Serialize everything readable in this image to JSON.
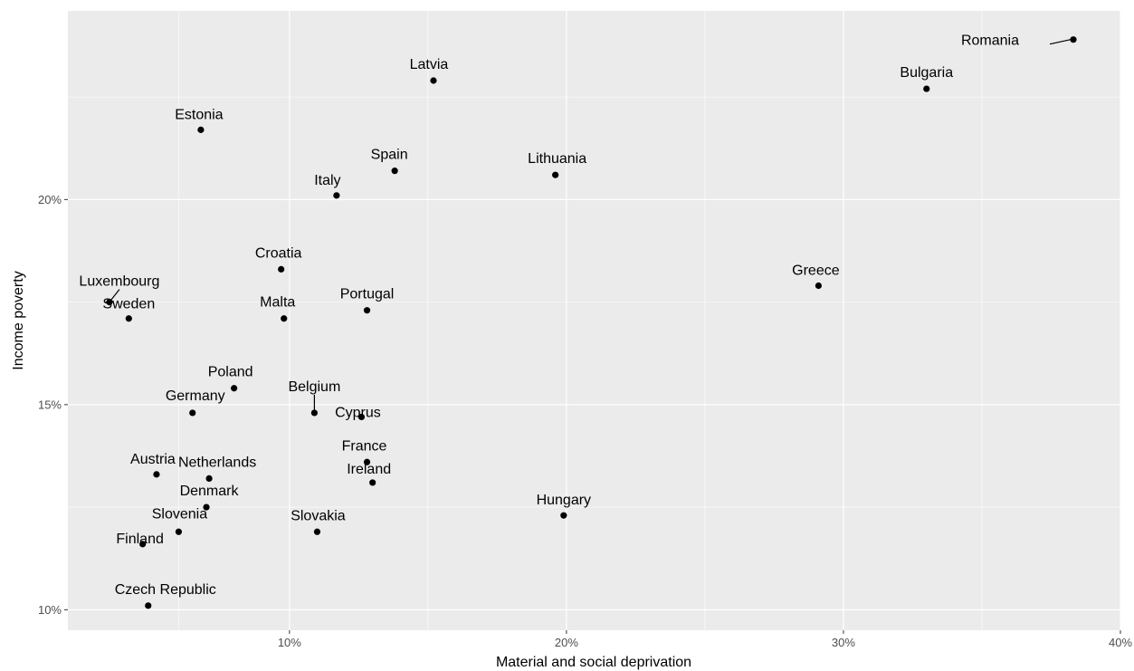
{
  "chart_data": {
    "type": "scatter",
    "title": "",
    "xlabel": "Material and social deprivation",
    "ylabel": "Income poverty",
    "xlim": [
      2,
      40
    ],
    "ylim": [
      9.5,
      24.6
    ],
    "xticks": [
      10,
      20,
      30,
      40
    ],
    "xtick_labels": [
      "10%",
      "20%",
      "30%",
      "40%"
    ],
    "yticks": [
      10,
      15,
      20
    ],
    "ytick_labels": [
      "10%",
      "15%",
      "20%"
    ],
    "grid": true,
    "legend": "none",
    "colors": {
      "panel": "#ebebeb",
      "grid": "#ffffff",
      "point": "#000000",
      "text": "#000000",
      "tick_text": "#4d4d4d"
    },
    "points": [
      {
        "label": "Romania",
        "x": 38.3,
        "y": 23.9
      },
      {
        "label": "Bulgaria",
        "x": 33.0,
        "y": 22.7
      },
      {
        "label": "Latvia",
        "x": 15.2,
        "y": 22.9
      },
      {
        "label": "Estonia",
        "x": 6.8,
        "y": 21.7
      },
      {
        "label": "Spain",
        "x": 13.8,
        "y": 20.7
      },
      {
        "label": "Lithuania",
        "x": 19.6,
        "y": 20.6
      },
      {
        "label": "Italy",
        "x": 11.7,
        "y": 20.1
      },
      {
        "label": "Croatia",
        "x": 9.7,
        "y": 18.3
      },
      {
        "label": "Greece",
        "x": 29.1,
        "y": 17.9
      },
      {
        "label": "Luxembourg",
        "x": 3.5,
        "y": 17.5
      },
      {
        "label": "Sweden",
        "x": 4.2,
        "y": 17.1
      },
      {
        "label": "Malta",
        "x": 9.8,
        "y": 17.1
      },
      {
        "label": "Portugal",
        "x": 12.8,
        "y": 17.3
      },
      {
        "label": "Poland",
        "x": 8.0,
        "y": 15.4
      },
      {
        "label": "Germany",
        "x": 6.5,
        "y": 14.8
      },
      {
        "label": "Belgium",
        "x": 10.9,
        "y": 14.8
      },
      {
        "label": "Cyprus",
        "x": 12.6,
        "y": 14.7
      },
      {
        "label": "France",
        "x": 12.8,
        "y": 13.6
      },
      {
        "label": "Ireland",
        "x": 13.0,
        "y": 13.1
      },
      {
        "label": "Austria",
        "x": 5.2,
        "y": 13.3
      },
      {
        "label": "Netherlands",
        "x": 7.1,
        "y": 13.2
      },
      {
        "label": "Denmark",
        "x": 7.0,
        "y": 12.5
      },
      {
        "label": "Hungary",
        "x": 19.9,
        "y": 12.3
      },
      {
        "label": "Slovenia",
        "x": 6.0,
        "y": 11.9
      },
      {
        "label": "Slovakia",
        "x": 11.0,
        "y": 11.9
      },
      {
        "label": "Finland",
        "x": 4.7,
        "y": 11.6
      },
      {
        "label": "Czech Republic",
        "x": 4.9,
        "y": 10.1
      }
    ]
  }
}
